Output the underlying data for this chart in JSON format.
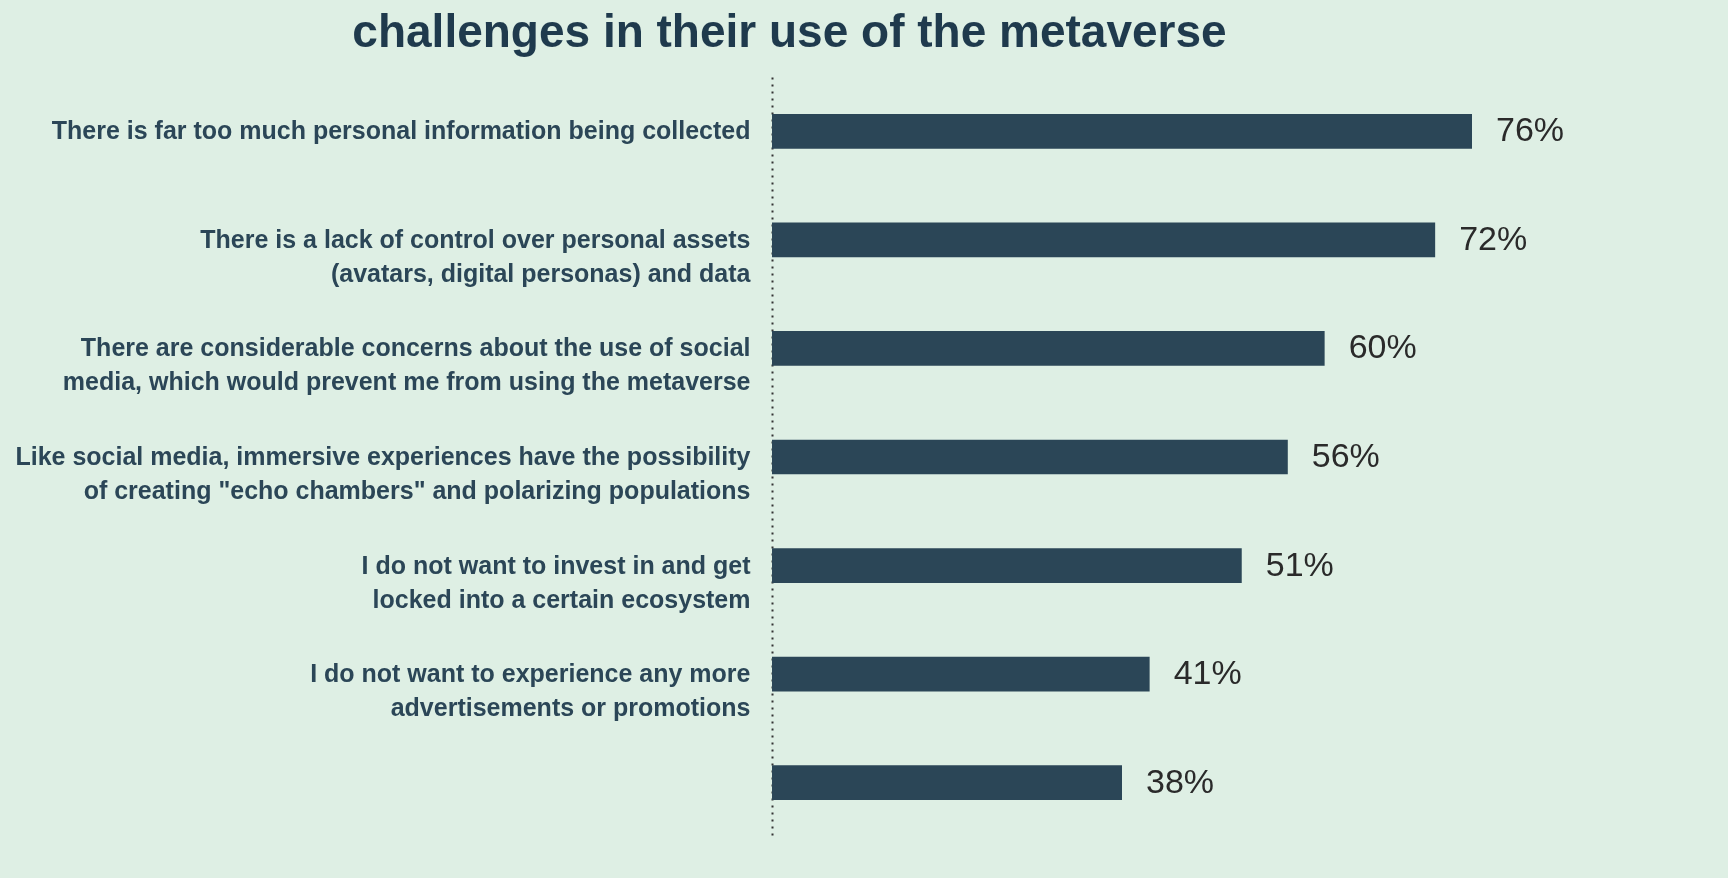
{
  "chart_data": {
    "type": "bar",
    "orientation": "horizontal",
    "title": "challenges in their use of the metaverse",
    "categories": [
      "There is far too much personal information being collected",
      "There is a lack of control over personal assets\n(avatars, digital personas) and data",
      "There are considerable concerns about the use of social\nmedia, which would prevent me from using the metaverse",
      "Like social media, immersive experiences have the possibility\nof creating \"echo chambers\" and polarizing populations",
      "I do not want to invest in and get\nlocked into a certain ecosystem",
      "I do not want to experience any more\nadvertisements or promotions",
      null
    ],
    "values": [
      76,
      72,
      60,
      56,
      51,
      41,
      38
    ],
    "value_labels": [
      "76%",
      "72%",
      "60%",
      "56%",
      "51%",
      "41%",
      "38%"
    ],
    "color": "#2b4657"
  }
}
